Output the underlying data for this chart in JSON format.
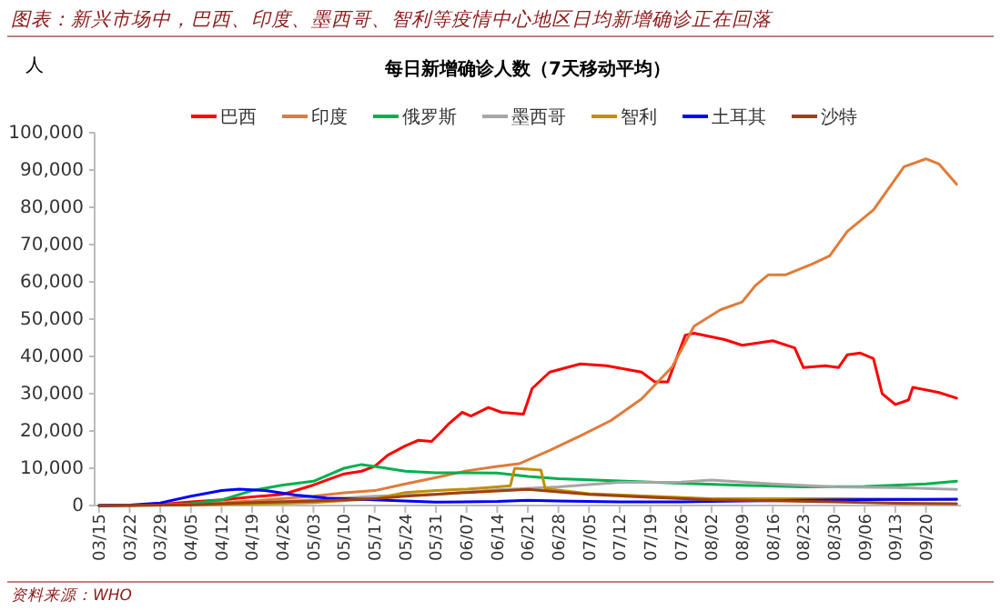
{
  "chart_data": {
    "type": "line",
    "title": "图表：新兴市场中，巴西、印度、墨西哥、智利等疫情中心地区日均新增确诊正在回落",
    "subtitle": "每日新增确诊人数（7天移动平均）",
    "ylabel": "人",
    "annotations": [
      "资料来源：WHO"
    ],
    "xlim": [
      "--03-14",
      "--09-28"
    ],
    "xticks": [
      {
        "value": "--03-15",
        "label": "03/15"
      },
      {
        "value": "--03-22",
        "label": "03/22"
      },
      {
        "value": "--03-29",
        "label": "03/29"
      },
      {
        "value": "--04-05",
        "label": "04/05"
      },
      {
        "value": "--04-12",
        "label": "04/12"
      },
      {
        "value": "--04-19",
        "label": "04/19"
      },
      {
        "value": "--04-26",
        "label": "04/26"
      },
      {
        "value": "--05-03",
        "label": "05/03"
      },
      {
        "value": "--05-10",
        "label": "05/10"
      },
      {
        "value": "--05-17",
        "label": "05/17"
      },
      {
        "value": "--05-24",
        "label": "05/24"
      },
      {
        "value": "--05-31",
        "label": "05/31"
      },
      {
        "value": "--06-07",
        "label": "06/07"
      },
      {
        "value": "--06-14",
        "label": "06/14"
      },
      {
        "value": "--06-21",
        "label": "06/21"
      },
      {
        "value": "--06-28",
        "label": "06/28"
      },
      {
        "value": "--07-05",
        "label": "07/05"
      },
      {
        "value": "--07-12",
        "label": "07/12"
      },
      {
        "value": "--07-19",
        "label": "07/19"
      },
      {
        "value": "--07-26",
        "label": "07/26"
      },
      {
        "value": "--08-02",
        "label": "08/02"
      },
      {
        "value": "--08-09",
        "label": "08/09"
      },
      {
        "value": "--08-16",
        "label": "08/16"
      },
      {
        "value": "--08-23",
        "label": "08/23"
      },
      {
        "value": "--08-30",
        "label": "08/30"
      },
      {
        "value": "--09-06",
        "label": "09/06"
      },
      {
        "value": "--09-13",
        "label": "09/13"
      },
      {
        "value": "--09-20",
        "label": "09/20"
      }
    ],
    "ylim": [
      0,
      100000
    ],
    "yticks": [
      {
        "value": 0,
        "label": "0"
      },
      {
        "value": 10000,
        "label": "10,000"
      },
      {
        "value": 20000,
        "label": "20,000"
      },
      {
        "value": 30000,
        "label": "30,000"
      },
      {
        "value": 40000,
        "label": "40,000"
      },
      {
        "value": 50000,
        "label": "50,000"
      },
      {
        "value": 60000,
        "label": "60,000"
      },
      {
        "value": 70000,
        "label": "70,000"
      },
      {
        "value": 80000,
        "label": "80,000"
      },
      {
        "value": 90000,
        "label": "90,000"
      },
      {
        "value": 100000,
        "label": "100,000"
      }
    ],
    "grid": false,
    "legend": "top",
    "marker": "none",
    "line_style": "solid",
    "series": [
      {
        "name": "巴西",
        "color": "#ff0000",
        "x": [
          "--03-15",
          "--03-22",
          "--03-29",
          "--04-05",
          "--04-12",
          "--04-19",
          "--04-26",
          "--05-03",
          "--05-10",
          "--05-14",
          "--05-17",
          "--05-20",
          "--05-24",
          "--05-27",
          "--05-30",
          "--06-01",
          "--06-03",
          "--06-06",
          "--06-08",
          "--06-12",
          "--06-15",
          "--06-20",
          "--06-22",
          "--06-26",
          "--07-03",
          "--07-09",
          "--07-17",
          "--07-20",
          "--07-23",
          "--07-27",
          "--07-29",
          "--08-05",
          "--08-09",
          "--08-16",
          "--08-21",
          "--08-23",
          "--08-28",
          "--08-31",
          "--09-02",
          "--09-05",
          "--09-08",
          "--09-10",
          "--09-13",
          "--09-16",
          "--09-17",
          "--09-23",
          "--09-27"
        ],
        "values": [
          0,
          0,
          300,
          1000,
          1500,
          2300,
          3000,
          5500,
          8500,
          9200,
          10500,
          13500,
          16000,
          17500,
          17200,
          19500,
          22000,
          25000,
          24000,
          26300,
          25000,
          24500,
          31400,
          35800,
          38000,
          37500,
          35800,
          33200,
          33200,
          45700,
          46200,
          44500,
          43000,
          44200,
          42300,
          37000,
          37500,
          37000,
          40400,
          40900,
          39400,
          30000,
          27100,
          28300,
          31700,
          30300,
          28800
        ]
      },
      {
        "name": "印度",
        "color": "#e07b39",
        "x": [
          "--03-15",
          "--04-05",
          "--04-19",
          "--05-03",
          "--05-10",
          "--05-17",
          "--05-24",
          "--05-31",
          "--06-07",
          "--06-14",
          "--06-19",
          "--06-26",
          "--07-03",
          "--07-10",
          "--07-17",
          "--07-24",
          "--07-29",
          "--08-04",
          "--08-09",
          "--08-12",
          "--08-15",
          "--08-19",
          "--08-25",
          "--08-29",
          "--09-02",
          "--09-08",
          "--09-15",
          "--09-20",
          "--09-23",
          "--09-27"
        ],
        "values": [
          0,
          300,
          1200,
          2500,
          3400,
          4000,
          5800,
          7500,
          9300,
          10500,
          11200,
          14800,
          18700,
          22800,
          28600,
          37200,
          48100,
          52500,
          54600,
          59000,
          61900,
          61900,
          64800,
          67000,
          73500,
          79300,
          90900,
          93000,
          91600,
          86200
        ]
      },
      {
        "name": "俄罗斯",
        "color": "#00b050",
        "x": [
          "--03-15",
          "--03-29",
          "--04-05",
          "--04-12",
          "--04-19",
          "--04-26",
          "--05-03",
          "--05-10",
          "--05-14",
          "--05-17",
          "--05-24",
          "--05-31",
          "--06-07",
          "--06-14",
          "--06-21",
          "--06-28",
          "--07-12",
          "--07-26",
          "--08-09",
          "--08-23",
          "--09-06",
          "--09-20",
          "--09-27"
        ],
        "values": [
          0,
          100,
          500,
          1500,
          4000,
          5500,
          6500,
          10000,
          11000,
          10500,
          9200,
          8800,
          8800,
          8700,
          7800,
          7200,
          6600,
          6000,
          5400,
          5000,
          5100,
          5800,
          6500
        ]
      },
      {
        "name": "墨西哥",
        "color": "#a6a6a6",
        "x": [
          "--03-15",
          "--04-05",
          "--04-19",
          "--05-03",
          "--05-17",
          "--05-31",
          "--06-14",
          "--06-28",
          "--07-12",
          "--07-26",
          "--08-02",
          "--08-16",
          "--08-30",
          "--09-13",
          "--09-27"
        ],
        "values": [
          0,
          100,
          600,
          1500,
          2500,
          3000,
          4200,
          5000,
          6200,
          6300,
          6800,
          5800,
          5000,
          4800,
          4300
        ]
      },
      {
        "name": "智利",
        "color": "#bf9000",
        "x": [
          "--03-15",
          "--04-05",
          "--04-19",
          "--05-03",
          "--05-17",
          "--05-24",
          "--05-31",
          "--06-07",
          "--06-14",
          "--06-17",
          "--06-18",
          "--06-24",
          "--06-25",
          "--07-05",
          "--07-19",
          "--08-02",
          "--08-16",
          "--08-30",
          "--09-13",
          "--09-27"
        ],
        "values": [
          0,
          200,
          400,
          800,
          1800,
          3500,
          4000,
          4400,
          5000,
          5300,
          10000,
          9500,
          4500,
          3200,
          2500,
          1800,
          1800,
          1800,
          1700,
          1600
        ]
      },
      {
        "name": "土耳其",
        "color": "#0000ff",
        "x": [
          "--03-15",
          "--03-22",
          "--03-29",
          "--04-05",
          "--04-12",
          "--04-16",
          "--04-22",
          "--04-29",
          "--05-06",
          "--05-17",
          "--05-31",
          "--06-14",
          "--06-21",
          "--06-28",
          "--07-12",
          "--07-26",
          "--08-09",
          "--08-23",
          "--09-06",
          "--09-27"
        ],
        "values": [
          0,
          100,
          700,
          2500,
          4000,
          4400,
          4000,
          2800,
          2000,
          1500,
          900,
          1100,
          1400,
          1200,
          1000,
          1000,
          1200,
          1400,
          1600,
          1700
        ]
      },
      {
        "name": "沙特",
        "color": "#a0400f",
        "x": [
          "--03-15",
          "--04-05",
          "--04-19",
          "--05-03",
          "--05-17",
          "--05-24",
          "--06-07",
          "--06-21",
          "--07-05",
          "--07-19",
          "--08-02",
          "--08-16",
          "--08-30",
          "--09-13",
          "--09-27"
        ],
        "values": [
          0,
          200,
          800,
          1200,
          1800,
          2500,
          3500,
          4300,
          3000,
          2200,
          1500,
          1300,
          1000,
          600,
          500
        ]
      }
    ]
  }
}
